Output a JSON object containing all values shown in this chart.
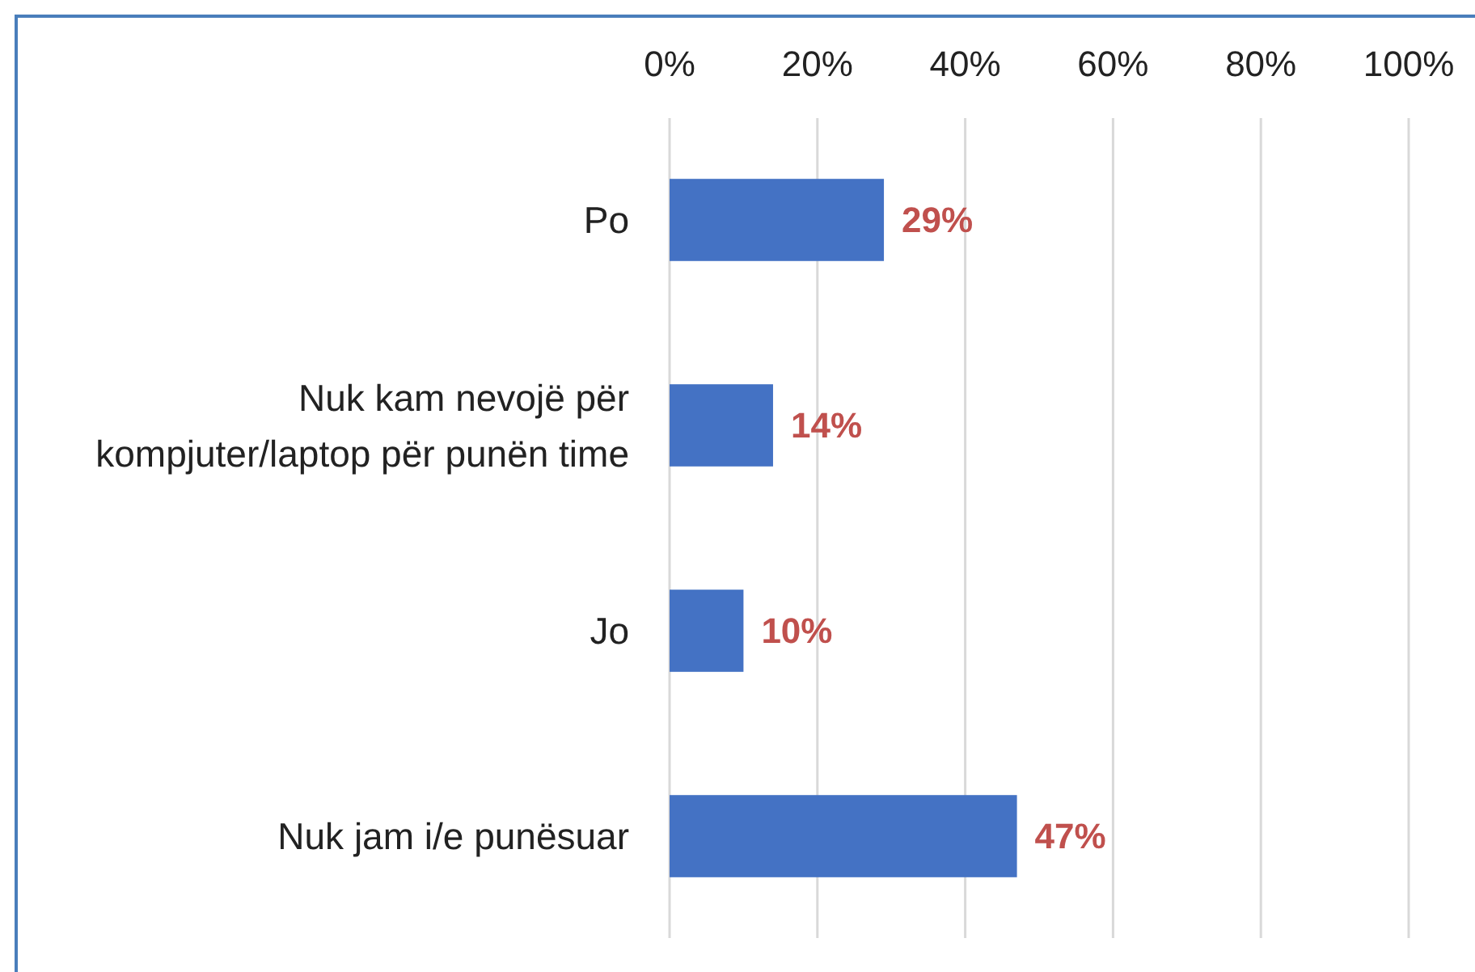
{
  "chart_data": {
    "type": "bar",
    "orientation": "horizontal",
    "categories": [
      "Po",
      "Nuk kam nevojë për kompjuter/laptop për punën time",
      "Jo",
      "Nuk jam i/e punësuar"
    ],
    "values": [
      29,
      14,
      10,
      47
    ],
    "color": "#4472c4",
    "xlim": [
      0,
      100
    ],
    "xticks": [
      {
        "value": 0,
        "label": "0%"
      },
      {
        "value": 20,
        "label": "20%"
      },
      {
        "value": 40,
        "label": "40%"
      },
      {
        "value": 60,
        "label": "60%"
      },
      {
        "value": 80,
        "label": "80%"
      },
      {
        "value": 100,
        "label": "100%"
      }
    ],
    "grid": "x",
    "value_labels": [
      "29%",
      "14%",
      "10%",
      "47%"
    ]
  }
}
